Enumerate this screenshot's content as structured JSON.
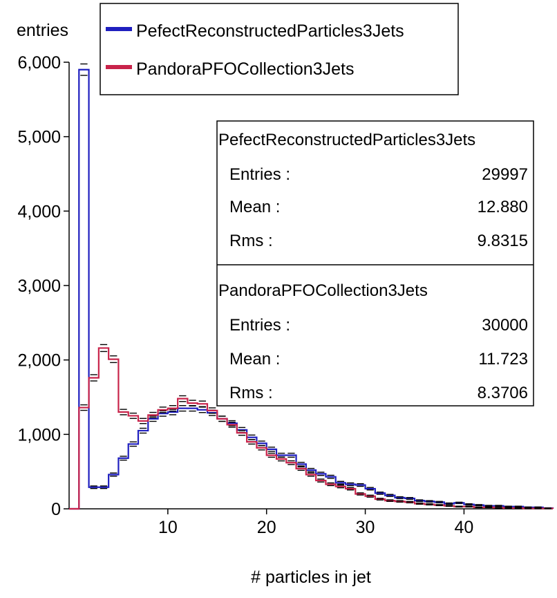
{
  "chart_data": {
    "type": "histogram",
    "xlabel": "# particles in jet",
    "ylabel": "entries",
    "xlim": [
      0,
      49
    ],
    "ylim": [
      0,
      6000
    ],
    "x_ticks": [
      10,
      20,
      30,
      40
    ],
    "y_ticks": [
      0,
      1000,
      2000,
      3000,
      4000,
      5000,
      6000
    ],
    "y_tick_labels": [
      "0",
      "1,000",
      "2,000",
      "3,000",
      "4,000",
      "5,000",
      "6,000"
    ],
    "bin_width": 1,
    "legend_position": "top-left",
    "series": [
      {
        "name": "PefectReconstructedParticles3Jets",
        "color": "#1f1fbf",
        "values": [
          0,
          5900,
          290,
          290,
          460,
          680,
          870,
          1050,
          1210,
          1280,
          1300,
          1350,
          1350,
          1330,
          1290,
          1210,
          1150,
          1060,
          960,
          880,
          800,
          720,
          720,
          600,
          520,
          470,
          430,
          350,
          330,
          320,
          270,
          210,
          180,
          150,
          140,
          110,
          100,
          90,
          70,
          80,
          60,
          50,
          40,
          40,
          30,
          30,
          20,
          20,
          10
        ]
      },
      {
        "name": "PandoraPFOCollection3Jets",
        "color": "#c8234a",
        "values": [
          0,
          1360,
          1760,
          2160,
          2010,
          1300,
          1250,
          1180,
          1260,
          1330,
          1350,
          1480,
          1420,
          1410,
          1320,
          1210,
          1130,
          1020,
          900,
          820,
          720,
          670,
          620,
          540,
          460,
          380,
          330,
          300,
          270,
          200,
          170,
          130,
          110,
          100,
          90,
          70,
          60,
          50,
          40,
          30,
          30,
          20,
          20,
          15,
          10,
          10,
          5,
          5,
          5
        ]
      }
    ],
    "stats": [
      {
        "name": "PefectReconstructedParticles3Jets",
        "rows": [
          {
            "label": "Entries :",
            "value": "29997"
          },
          {
            "label": "Mean :",
            "value": "12.880"
          },
          {
            "label": "Rms :",
            "value": "9.8315"
          }
        ]
      },
      {
        "name": "PandoraPFOCollection3Jets",
        "rows": [
          {
            "label": "Entries :",
            "value": "30000"
          },
          {
            "label": "Mean :",
            "value": "11.723"
          },
          {
            "label": "Rms :",
            "value": "8.3706"
          }
        ]
      }
    ]
  }
}
